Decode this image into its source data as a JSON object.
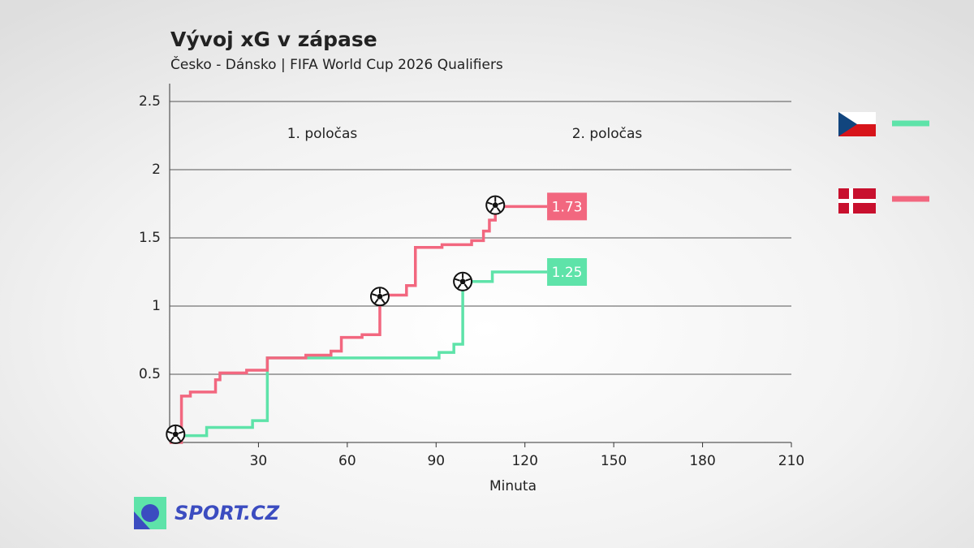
{
  "chart_data": {
    "type": "step",
    "title": "Vývoj xG v zápase",
    "subtitle": "Česko - Dánsko | FIFA World Cup 2026 Qualifiers",
    "x_label": "Minuta",
    "annotations": [
      "1. poločas",
      "2. poločas"
    ],
    "xlim": [
      0,
      210
    ],
    "xticks": [
      30,
      60,
      90,
      120,
      150,
      180,
      210
    ],
    "ylim": [
      0,
      2.5
    ],
    "yticks": [
      0.5,
      1,
      1.5,
      2,
      2.5
    ],
    "grid": true,
    "series": [
      {
        "color": "#5ee3a9",
        "x": [
          0,
          4,
          12.5,
          28,
          33,
          91,
          96,
          99,
          109,
          127.5
        ],
        "values": [
          0,
          0.05,
          0.11,
          0.16,
          0.62,
          0.66,
          0.72,
          1.18,
          1.25,
          1.25
        ],
        "goals": [
          {
            "x": 99,
            "y": 1.18
          }
        ]
      },
      {
        "color": "#f2677f",
        "x": [
          0,
          4,
          7,
          15.5,
          17,
          26,
          33,
          46,
          54.5,
          58,
          65,
          71,
          80,
          83,
          92,
          102,
          106,
          108,
          110,
          127.5
        ],
        "values": [
          0,
          0.34,
          0.37,
          0.46,
          0.51,
          0.53,
          0.62,
          0.64,
          0.67,
          0.77,
          0.79,
          1.08,
          1.15,
          1.43,
          1.45,
          1.48,
          1.55,
          1.63,
          1.73,
          1.73
        ],
        "goals": [
          {
            "x": 2,
            "y": 0.06
          },
          {
            "x": 71,
            "y": 1.07
          },
          {
            "x": 110,
            "y": 1.74
          }
        ]
      }
    ]
  },
  "branding": "SPORT.CZ"
}
